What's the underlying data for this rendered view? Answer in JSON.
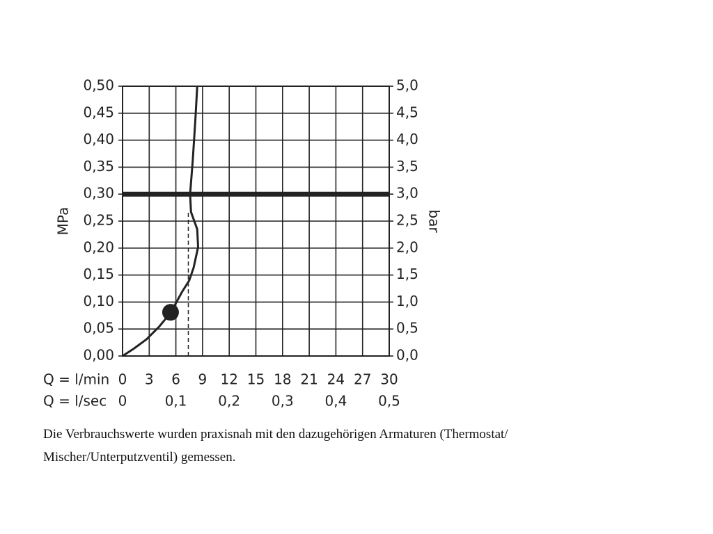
{
  "chart_data": {
    "type": "line",
    "y_label": "MPa",
    "y2_label": "bar",
    "x_label": "Q = l/min",
    "x2_label": "Q = l/sec",
    "xlim": [
      0,
      30
    ],
    "xticks": [
      0,
      3,
      6,
      9,
      12,
      15,
      18,
      21,
      24,
      27,
      30
    ],
    "x2lim": [
      0,
      0.5
    ],
    "x2ticks": [
      0,
      {
        "value": 0.1,
        "label": "0,1"
      },
      {
        "value": 0.2,
        "label": "0,2"
      },
      {
        "value": 0.3,
        "label": "0,3"
      },
      {
        "value": 0.4,
        "label": "0,4"
      },
      {
        "value": 0.5,
        "label": "0,5"
      }
    ],
    "ylim": [
      0,
      0.5
    ],
    "yticks": [
      {
        "value": 0,
        "label": "0,00"
      },
      {
        "value": 0.05,
        "label": "0,05"
      },
      {
        "value": 0.1,
        "label": "0,10"
      },
      {
        "value": 0.15,
        "label": "0,15"
      },
      {
        "value": 0.2,
        "label": "0,20"
      },
      {
        "value": 0.25,
        "label": "0,25"
      },
      {
        "value": 0.3,
        "label": "0,30"
      },
      {
        "value": 0.35,
        "label": "0,35"
      },
      {
        "value": 0.4,
        "label": "0,40"
      },
      {
        "value": 0.45,
        "label": "0,45"
      },
      {
        "value": 0.5,
        "label": "0,50"
      }
    ],
    "y2lim": [
      0,
      5
    ],
    "y2ticks": [
      {
        "value": 0,
        "label": "0,0"
      },
      {
        "value": 0.5,
        "label": "0,5"
      },
      {
        "value": 1,
        "label": "1,0"
      },
      {
        "value": 1.5,
        "label": "1,5"
      },
      {
        "value": 2,
        "label": "2,0"
      },
      {
        "value": 2.5,
        "label": "2,5"
      },
      {
        "value": 3,
        "label": "3,0"
      },
      {
        "value": 3.5,
        "label": "3,5"
      },
      {
        "value": 4,
        "label": "4,0"
      },
      {
        "value": 4.5,
        "label": "4,5"
      },
      {
        "value": 5,
        "label": "5,0"
      }
    ],
    "grid": true,
    "series": [
      {
        "color": "#222222",
        "x": [
          0,
          1.3,
          2.7,
          4.1,
          5.4,
          6.7,
          7.5,
          8.0,
          8.5,
          8.4,
          7.7,
          7.6,
          7.9,
          8.2,
          8.4
        ],
        "values": [
          0,
          0.014,
          0.031,
          0.054,
          0.08,
          0.119,
          0.14,
          0.164,
          0.202,
          0.235,
          0.267,
          0.3,
          0.363,
          0.44,
          0.5
        ]
      }
    ],
    "marker": {
      "x": 5.4,
      "y": 0.081
    },
    "hline": 0.3,
    "vline": {
      "x": 7.4,
      "y_to": 0.27
    },
    "caption": [
      "Die Verbrauchswerte wurden praxisnah mit den dazugehörigen Armaturen (Thermostat/",
      "Mischer/Unterputzventil) gemessen."
    ]
  }
}
